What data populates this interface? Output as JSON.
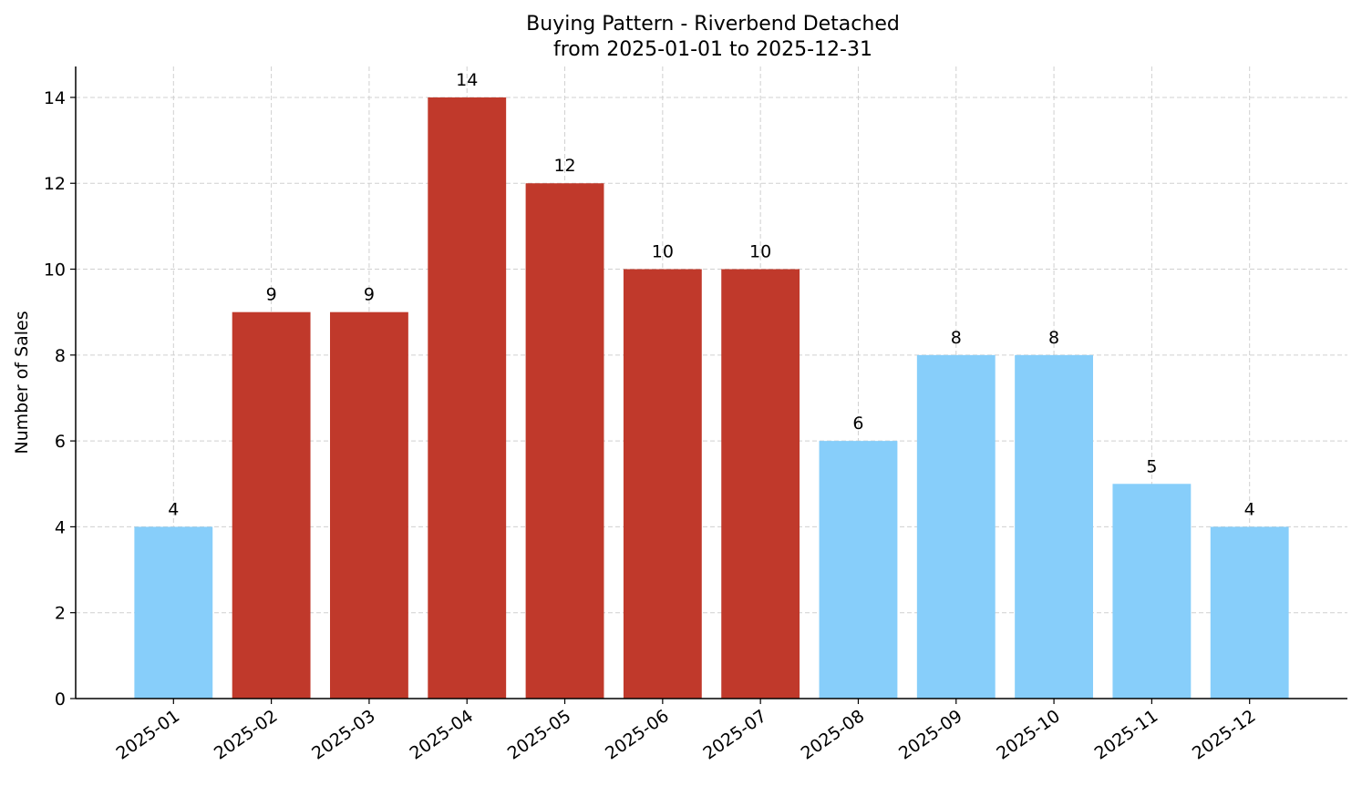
{
  "chart_data": {
    "type": "bar",
    "title": "Buying Pattern - Riverbend Detached",
    "subtitle": "from 2025-01-01 to 2025-12-31",
    "y_label": "Number of Sales",
    "categories": [
      "2025-01",
      "2025-02",
      "2025-03",
      "2025-04",
      "2025-05",
      "2025-06",
      "2025-07",
      "2025-08",
      "2025-09",
      "2025-10",
      "2025-11",
      "2025-12"
    ],
    "values": [
      4,
      9,
      9,
      14,
      12,
      10,
      10,
      6,
      8,
      8,
      5,
      4
    ],
    "colors": [
      "#87cefa",
      "#c0392b",
      "#c0392b",
      "#c0392b",
      "#c0392b",
      "#c0392b",
      "#c0392b",
      "#87cefa",
      "#87cefa",
      "#87cefa",
      "#87cefa",
      "#87cefa"
    ],
    "ylim": [
      0,
      14.72
    ],
    "yticks": [
      0,
      2,
      4,
      6,
      8,
      10,
      12,
      14
    ],
    "grid": true
  }
}
